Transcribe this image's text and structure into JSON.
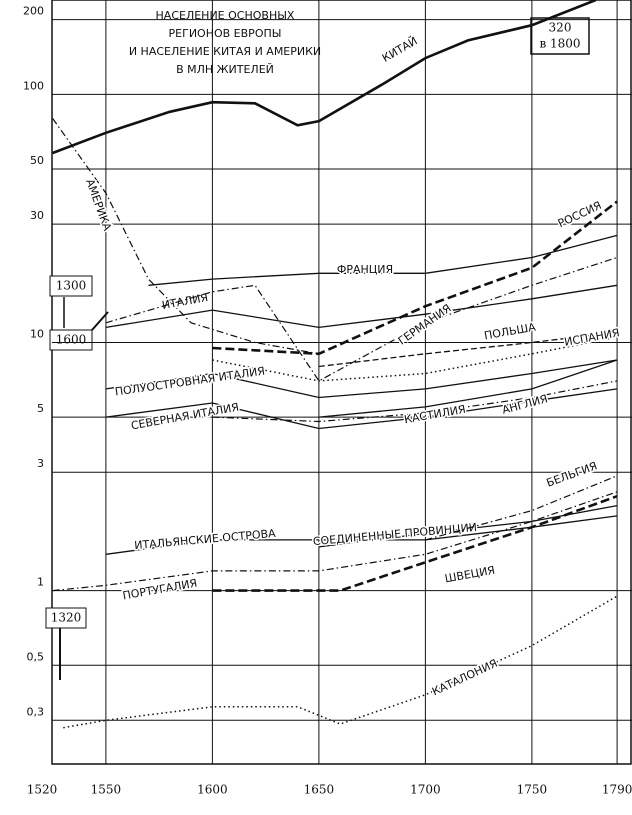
{
  "chart_data": {
    "type": "line",
    "title": [
      "НАСЕЛЕНИЕ ОСНОВНЫХ",
      "РЕГИОНОВ ЕВРОПЫ",
      "И НАСЕЛЕНИЕ КИТАЯ И АМЕРИКИ",
      "В МЛН ЖИТЕЛЕЙ"
    ],
    "annotations": [
      "320",
      "в 1800",
      "1300",
      "1600",
      "1320"
    ],
    "log_y": true,
    "grid": true,
    "xlim": [
      1520,
      1797
    ],
    "xticks": [
      1520,
      1550,
      1600,
      1650,
      1700,
      1750,
      1790
    ],
    "ylim": [
      0.2,
      240
    ],
    "yticks": [
      200,
      100,
      50,
      30,
      10,
      5,
      3,
      1,
      {
        "value": 0.5,
        "label": "0,5"
      },
      {
        "value": 0.3,
        "label": "0,3"
      }
    ],
    "series": [
      {
        "name": "КИТАЙ",
        "color": "#111",
        "style": "thick",
        "x": [
          1525,
          1550,
          1580,
          1600,
          1620,
          1640,
          1650,
          1680,
          1700,
          1720,
          1750,
          1780
        ],
        "values": [
          58,
          70,
          85,
          93,
          92,
          75,
          78,
          110,
          140,
          165,
          190,
          240
        ]
      },
      {
        "name": "АМЕРИКА",
        "color": "#111",
        "style": "dashdot",
        "x": [
          1525,
          1550,
          1570,
          1590,
          1620,
          1650
        ],
        "values": [
          80,
          40,
          18,
          12,
          10,
          9
        ]
      },
      {
        "name": "ФРАНЦИЯ",
        "color": "#111",
        "style": "solid",
        "x": [
          1570,
          1600,
          1650,
          1700,
          1750,
          1790
        ],
        "values": [
          17,
          18,
          19,
          19,
          22,
          27
        ]
      },
      {
        "name": "ИТАЛИЯ",
        "color": "#111",
        "style": "solid",
        "x": [
          1550,
          1600,
          1650,
          1700,
          1750,
          1790
        ],
        "values": [
          11.5,
          13.5,
          11.5,
          13,
          15,
          17
        ]
      },
      {
        "name": "ГЕРМАНИЯ",
        "color": "#111",
        "style": "dashdot",
        "x": [
          1550,
          1600,
          1620,
          1650,
          1700,
          1750,
          1790
        ],
        "values": [
          12,
          16,
          17,
          7,
          12,
          17,
          22
        ]
      },
      {
        "name": "РОССИЯ",
        "color": "#111",
        "style": "thickdash",
        "x": [
          1600,
          1650,
          1700,
          1750,
          1790
        ],
        "values": [
          9.5,
          9,
          14,
          20,
          37
        ]
      },
      {
        "name": "ПОЛЬША",
        "color": "#111",
        "style": "dashed",
        "x": [
          1650,
          1700,
          1750,
          1790
        ],
        "values": [
          8,
          9,
          10,
          11
        ]
      },
      {
        "name": "ИСПАНИЯ",
        "color": "#111",
        "style": "dotted",
        "x": [
          1600,
          1650,
          1700,
          1750,
          1790
        ],
        "values": [
          8.5,
          7,
          7.5,
          9,
          10.5
        ]
      },
      {
        "name": "ПОЛУОСТРОВНАЯ ИТАЛИЯ",
        "color": "#111",
        "style": "solid",
        "x": [
          1550,
          1600,
          1650,
          1700,
          1750,
          1790
        ],
        "values": [
          6.5,
          7.5,
          6,
          6.5,
          7.5,
          8.5
        ]
      },
      {
        "name": "СЕВЕРНАЯ ИТАЛИЯ",
        "color": "#111",
        "style": "solid",
        "x": [
          1550,
          1600,
          1650,
          1700,
          1750,
          1790
        ],
        "values": [
          5,
          5.7,
          4.5,
          5,
          5.8,
          6.5
        ]
      },
      {
        "name": "КАСТИЛИЯ",
        "color": "#111",
        "style": "dashdot",
        "x": [
          1600,
          1650,
          1700,
          1750,
          1790
        ],
        "values": [
          5,
          4.8,
          5.2,
          6,
          7
        ]
      },
      {
        "name": "АНГЛИЯ",
        "color": "#111",
        "style": "solid",
        "x": [
          1650,
          1700,
          1750,
          1790
        ],
        "values": [
          5,
          5.5,
          6.5,
          8.5
        ]
      },
      {
        "name": "ИТАЛЬЯНСКИЕ ОСТРОВА",
        "color": "#111",
        "style": "solid",
        "x": [
          1550,
          1600,
          1650,
          1700,
          1750,
          1790
        ],
        "values": [
          1.4,
          1.6,
          1.6,
          1.6,
          1.8,
          2
        ]
      },
      {
        "name": "СОЕДИНЕННЫЕ ПРОВИНЦИИ",
        "color": "#111",
        "style": "solid",
        "x": [
          1650,
          1700,
          1750,
          1790
        ],
        "values": [
          1.5,
          1.7,
          1.9,
          2.2
        ]
      },
      {
        "name": "БЕЛЬГИЯ",
        "color": "#111",
        "style": "dashdot",
        "x": [
          1700,
          1750,
          1790
        ],
        "values": [
          1.6,
          2.1,
          2.9
        ]
      },
      {
        "name": "ПОРТУГАЛИЯ",
        "color": "#111",
        "style": "dashdot",
        "x": [
          1525,
          1550,
          1600,
          1650,
          1700,
          1750,
          1790
        ],
        "values": [
          1,
          1.05,
          1.2,
          1.2,
          1.4,
          1.9,
          2.5
        ]
      },
      {
        "name": "ШВЕЦИЯ",
        "color": "#111",
        "style": "thickdash",
        "x": [
          1600,
          1660,
          1700,
          1750,
          1790
        ],
        "values": [
          1,
          1,
          1.3,
          1.8,
          2.4
        ]
      },
      {
        "name": "КАТАЛОНИЯ",
        "color": "#111",
        "style": "dotted",
        "x": [
          1530,
          1550,
          1600,
          1640,
          1660,
          1700,
          1750,
          1790
        ],
        "values": [
          0.28,
          0.3,
          0.34,
          0.34,
          0.29,
          0.38,
          0.6,
          0.95
        ]
      }
    ]
  }
}
